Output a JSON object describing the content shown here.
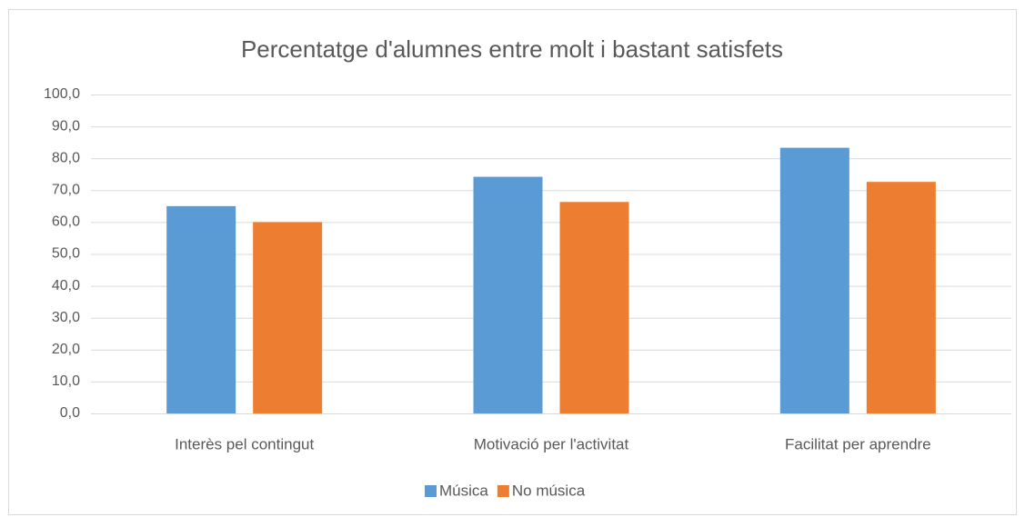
{
  "chart_data": {
    "type": "bar",
    "title": "Percentatge d'alumnes entre molt i bastant satisfets",
    "categories": [
      "Interès pel contingut",
      "Motivació per l'activitat",
      "Facilitat per aprendre"
    ],
    "series": [
      {
        "name": "Música",
        "color": "#5b9bd5",
        "values": [
          65.0,
          74.2,
          83.3
        ]
      },
      {
        "name": "No música",
        "color": "#ed7d31",
        "values": [
          60.0,
          66.3,
          72.6
        ]
      }
    ],
    "ylim": [
      0,
      100
    ],
    "yticks": [
      {
        "value": 0,
        "label": "0,0"
      },
      {
        "value": 10,
        "label": "10,0"
      },
      {
        "value": 20,
        "label": "20,0"
      },
      {
        "value": 30,
        "label": "30,0"
      },
      {
        "value": 40,
        "label": "40,0"
      },
      {
        "value": 50,
        "label": "50,0"
      },
      {
        "value": 60,
        "label": "60,0"
      },
      {
        "value": 70,
        "label": "70,0"
      },
      {
        "value": 80,
        "label": "80,0"
      },
      {
        "value": 90,
        "label": "90,0"
      },
      {
        "value": 100,
        "label": "100,0"
      }
    ],
    "grid": true,
    "legend": "bottom"
  }
}
